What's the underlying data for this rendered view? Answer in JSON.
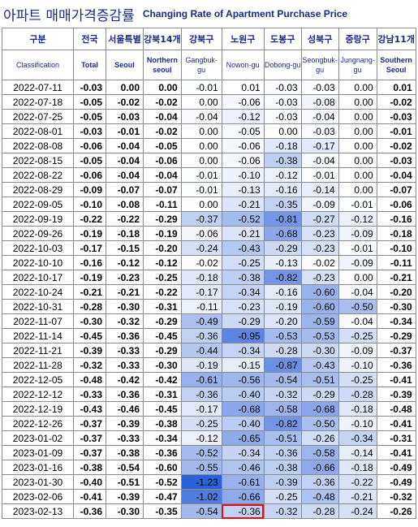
{
  "header": {
    "title_ko": "아파트 매매가격증감률",
    "title_en": "Changing Rate of Apartment Purchase Price"
  },
  "table": {
    "columns_ko": [
      "구분",
      "전국",
      "서울특별",
      "강북14개",
      "강북구",
      "노원구",
      "도봉구",
      "성북구",
      "중랑구",
      "강남11개"
    ],
    "columns_en": [
      "Classification",
      "Total",
      "Seoul",
      "Northern seoul",
      "Gangbuk-gu",
      "Nowon-gu",
      "Dobong-gu",
      "Seongbuk-gu",
      "Jungnang-gu",
      "Southern Seoul"
    ],
    "rows": [
      [
        "2022-07-11",
        "-0.03",
        "0.00",
        "0.00",
        "-0.01",
        "0.01",
        "-0.03",
        "-0.03",
        "0.00",
        "0.01"
      ],
      [
        "2022-07-18",
        "-0.05",
        "-0.02",
        "-0.02",
        "0.00",
        "-0.06",
        "-0.03",
        "-0.08",
        "0.00",
        "-0.02"
      ],
      [
        "2022-07-25",
        "-0.05",
        "-0.03",
        "-0.04",
        "-0.04",
        "-0.12",
        "-0.03",
        "-0.04",
        "0.00",
        "-0.03"
      ],
      [
        "2022-08-01",
        "-0.03",
        "-0.01",
        "-0.02",
        "0.00",
        "-0.05",
        "0.00",
        "-0.03",
        "0.00",
        "-0.01"
      ],
      [
        "2022-08-08",
        "-0.06",
        "-0.04",
        "-0.05",
        "0.00",
        "-0.06",
        "-0.18",
        "-0.17",
        "0.00",
        "-0.02"
      ],
      [
        "2022-08-15",
        "-0.05",
        "-0.04",
        "-0.06",
        "0.00",
        "-0.06",
        "-0.38",
        "-0.04",
        "0.00",
        "-0.03"
      ],
      [
        "2022-08-22",
        "-0.06",
        "-0.04",
        "-0.04",
        "-0.01",
        "-0.10",
        "-0.12",
        "-0.01",
        "0.00",
        "-0.04"
      ],
      [
        "2022-08-29",
        "-0.09",
        "-0.07",
        "-0.07",
        "-0.01",
        "-0.13",
        "-0.16",
        "-0.14",
        "0.00",
        "-0.07"
      ],
      [
        "2022-09-05",
        "-0.10",
        "-0.08",
        "-0.11",
        "0.00",
        "-0.21",
        "-0.35",
        "-0.09",
        "-0.01",
        "-0.06"
      ],
      [
        "2022-09-19",
        "-0.22",
        "-0.22",
        "-0.29",
        "-0.37",
        "-0.52",
        "-0.81",
        "-0.27",
        "-0.12",
        "-0.16"
      ],
      [
        "2022-09-26",
        "-0.19",
        "-0.18",
        "-0.19",
        "-0.06",
        "-0.21",
        "-0.68",
        "-0.23",
        "-0.09",
        "-0.18"
      ],
      [
        "2022-10-03",
        "-0.17",
        "-0.15",
        "-0.20",
        "-0.24",
        "-0.43",
        "-0.29",
        "-0.23",
        "-0.01",
        "-0.10"
      ],
      [
        "2022-10-10",
        "-0.16",
        "-0.12",
        "-0.12",
        "-0.02",
        "-0.25",
        "-0.13",
        "-0.02",
        "-0.09",
        "-0.11"
      ],
      [
        "2022-10-17",
        "-0.19",
        "-0.23",
        "-0.25",
        "-0.18",
        "-0.38",
        "-0.82",
        "-0.23",
        "0.00",
        "-0.21"
      ],
      [
        "2022-10-24",
        "-0.21",
        "-0.21",
        "-0.22",
        "-0.17",
        "-0.34",
        "-0.16",
        "-0.60",
        "-0.04",
        "-0.20"
      ],
      [
        "2022-10-31",
        "-0.28",
        "-0.30",
        "-0.31",
        "-0.11",
        "-0.23",
        "-0.19",
        "-0.60",
        "-0.50",
        "-0.30"
      ],
      [
        "2022-11-07",
        "-0.30",
        "-0.32",
        "-0.29",
        "-0.49",
        "-0.29",
        "-0.20",
        "-0.59",
        "-0.04",
        "-0.34"
      ],
      [
        "2022-11-14",
        "-0.45",
        "-0.36",
        "-0.45",
        "-0.36",
        "-0.95",
        "-0.53",
        "-0.53",
        "-0.25",
        "-0.29"
      ],
      [
        "2022-11-21",
        "-0.39",
        "-0.33",
        "-0.29",
        "-0.44",
        "-0.34",
        "-0.28",
        "-0.30",
        "-0.09",
        "-0.37"
      ],
      [
        "2022-11-28",
        "-0.32",
        "-0.33",
        "-0.30",
        "-0.19",
        "-0.15",
        "-0.87",
        "-0.43",
        "-0.10",
        "-0.36"
      ],
      [
        "2022-12-05",
        "-0.48",
        "-0.42",
        "-0.42",
        "-0.61",
        "-0.56",
        "-0.54",
        "-0.51",
        "-0.25",
        "-0.41"
      ],
      [
        "2022-12-12",
        "-0.33",
        "-0.36",
        "-0.31",
        "-0.36",
        "-0.40",
        "-0.32",
        "-0.29",
        "-0.28",
        "-0.39"
      ],
      [
        "2022-12-19",
        "-0.43",
        "-0.46",
        "-0.45",
        "-0.17",
        "-0.68",
        "-0.58",
        "-0.68",
        "-0.18",
        "-0.48"
      ],
      [
        "2022-12-26",
        "-0.37",
        "-0.39",
        "-0.38",
        "-0.25",
        "-0.40",
        "-0.82",
        "-0.50",
        "-0.10",
        "-0.41"
      ],
      [
        "2023-01-02",
        "-0.37",
        "-0.33",
        "-0.34",
        "-0.12",
        "-0.65",
        "-0.51",
        "-0.26",
        "-0.34",
        "-0.31"
      ],
      [
        "2023-01-09",
        "-0.37",
        "-0.38",
        "-0.36",
        "-0.52",
        "-0.34",
        "-0.36",
        "-0.58",
        "-0.14",
        "-0.41"
      ],
      [
        "2023-01-16",
        "-0.38",
        "-0.54",
        "-0.60",
        "-0.55",
        "-0.46",
        "-0.38",
        "-0.66",
        "-0.18",
        "-0.49"
      ],
      [
        "2023-01-30",
        "-0.40",
        "-0.51",
        "-0.52",
        "-1.23",
        "-0.61",
        "-0.39",
        "-0.36",
        "-0.22",
        "-0.49"
      ],
      [
        "2023-02-06",
        "-0.41",
        "-0.39",
        "-0.47",
        "-1.02",
        "-0.66",
        "-0.25",
        "-0.48",
        "-0.21",
        "-0.32"
      ],
      [
        "2023-02-13",
        "-0.36",
        "-0.30",
        "-0.35",
        "-0.54",
        "-0.36",
        "-0.32",
        "-0.28",
        "-0.24",
        "-0.26"
      ]
    ]
  }
}
